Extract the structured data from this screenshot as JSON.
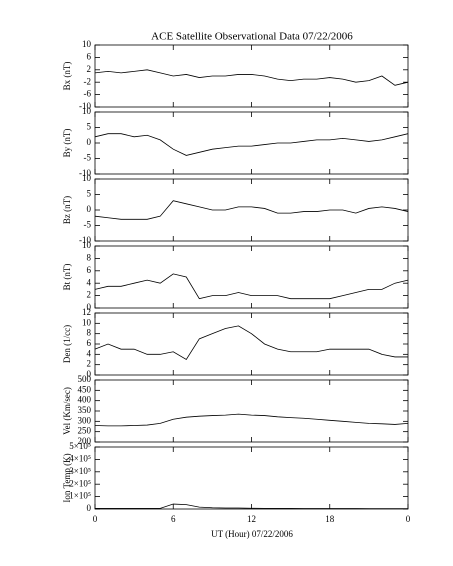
{
  "chart_data": [
    {
      "type": "line",
      "title": "ACE Satellite Observational Data   07/22/2006",
      "ylabel": "Bx (nT)",
      "color": "#000000",
      "x": [
        0,
        1,
        2,
        3,
        4,
        5,
        6,
        7,
        8,
        9,
        10,
        11,
        12,
        13,
        14,
        15,
        16,
        17,
        18,
        19,
        20,
        21,
        22,
        23,
        24
      ],
      "values": [
        1,
        1.5,
        1,
        1.5,
        2,
        1,
        0,
        0.5,
        -0.5,
        0,
        0,
        0.5,
        0.5,
        0,
        -1,
        -1.5,
        -1,
        -1,
        -0.5,
        -1,
        -2,
        -1.5,
        0,
        -3,
        -2
      ],
      "xlim": [
        0,
        24
      ],
      "ylim": [
        -10,
        10
      ],
      "yticks": [
        -10,
        -6,
        -2,
        2,
        6,
        10
      ]
    },
    {
      "type": "line",
      "ylabel": "By (nT)",
      "color": "#000000",
      "x": [
        0,
        1,
        2,
        3,
        4,
        5,
        6,
        7,
        8,
        9,
        10,
        11,
        12,
        13,
        14,
        15,
        16,
        17,
        18,
        19,
        20,
        21,
        22,
        23,
        24
      ],
      "values": [
        2,
        3,
        3,
        2,
        2.5,
        1,
        -2,
        -4,
        -3,
        -2,
        -1.5,
        -1,
        -1,
        -0.5,
        0,
        0,
        0.5,
        1,
        1,
        1.5,
        1,
        0.5,
        1,
        2,
        3
      ],
      "xlim": [
        0,
        24
      ],
      "ylim": [
        -10,
        10
      ],
      "yticks": [
        -10,
        -5,
        0,
        5,
        10
      ]
    },
    {
      "type": "line",
      "ylabel": "Bz (nT)",
      "color": "#000000",
      "x": [
        0,
        1,
        2,
        3,
        4,
        5,
        6,
        7,
        8,
        9,
        10,
        11,
        12,
        13,
        14,
        15,
        16,
        17,
        18,
        19,
        20,
        21,
        22,
        23,
        24
      ],
      "values": [
        -2,
        -2.5,
        -3,
        -3,
        -3,
        -2,
        3,
        2,
        1,
        0,
        0,
        1,
        1,
        0.5,
        -1,
        -1,
        -0.5,
        -0.5,
        0,
        0,
        -1,
        0.5,
        1,
        0.5,
        -0.5
      ],
      "xlim": [
        0,
        24
      ],
      "ylim": [
        -10,
        10
      ],
      "yticks": [
        -10,
        -5,
        0,
        5,
        10
      ]
    },
    {
      "type": "line",
      "ylabel": "Bt (nT)",
      "color": "#000000",
      "x": [
        0,
        1,
        2,
        3,
        4,
        5,
        6,
        7,
        8,
        9,
        10,
        11,
        12,
        13,
        14,
        15,
        16,
        17,
        18,
        19,
        20,
        21,
        22,
        23,
        24
      ],
      "values": [
        3,
        3.5,
        3.5,
        4,
        4.5,
        4,
        5.5,
        5,
        1.5,
        2,
        2,
        2.5,
        2,
        2,
        2,
        1.5,
        1.5,
        1.5,
        1.5,
        2,
        2.5,
        3,
        3,
        4,
        4.5
      ],
      "xlim": [
        0,
        24
      ],
      "ylim": [
        0,
        10
      ],
      "yticks": [
        0,
        2,
        4,
        6,
        8,
        10
      ]
    },
    {
      "type": "line",
      "ylabel": "Den (1/cc)",
      "color": "#000000",
      "x": [
        0,
        1,
        2,
        3,
        4,
        5,
        6,
        7,
        8,
        9,
        10,
        11,
        12,
        13,
        14,
        15,
        16,
        17,
        18,
        19,
        20,
        21,
        22,
        23,
        24
      ],
      "values": [
        5,
        6,
        5,
        5,
        4,
        4,
        4.5,
        3,
        7,
        8,
        9,
        9.5,
        8,
        6,
        5,
        4.5,
        4.5,
        4.5,
        5,
        5,
        5,
        5,
        4,
        3.5,
        3.5
      ],
      "xlim": [
        0,
        24
      ],
      "ylim": [
        0,
        12
      ],
      "yticks": [
        0,
        2,
        4,
        6,
        8,
        10,
        12
      ]
    },
    {
      "type": "line",
      "ylabel": "Vel (Km/sec)",
      "color": "#000000",
      "x": [
        0,
        1,
        2,
        3,
        4,
        5,
        6,
        7,
        8,
        9,
        10,
        11,
        12,
        13,
        14,
        15,
        16,
        17,
        18,
        19,
        20,
        21,
        22,
        23,
        24
      ],
      "values": [
        280,
        278,
        278,
        280,
        282,
        290,
        310,
        320,
        325,
        328,
        330,
        335,
        330,
        328,
        322,
        318,
        315,
        310,
        305,
        300,
        295,
        290,
        288,
        285,
        290
      ],
      "xlim": [
        0,
        24
      ],
      "ylim": [
        200,
        500
      ],
      "yticks": [
        200,
        250,
        300,
        350,
        400,
        450,
        500
      ]
    },
    {
      "type": "line",
      "ylabel": "Ion Temp (K)",
      "xlabel": "UT (Hour)   07/22/2006",
      "color": "#000000",
      "x": [
        0,
        1,
        2,
        3,
        4,
        5,
        6,
        7,
        8,
        9,
        10,
        11,
        12,
        13,
        14,
        15,
        16,
        17,
        18,
        19,
        20,
        21,
        22,
        23,
        24
      ],
      "values": [
        5000,
        5000,
        5000,
        5000,
        5000,
        5000,
        40000,
        35000,
        15000,
        10000,
        8000,
        8000,
        6000,
        5000,
        5000,
        5000,
        4000,
        4000,
        4000,
        4000,
        4000,
        3000,
        3000,
        3000,
        3000
      ],
      "xlim": [
        0,
        24
      ],
      "ylim": [
        0,
        500000
      ],
      "yticks": [
        0,
        {
          "value": 100000,
          "label": "1×10⁵"
        },
        {
          "value": 200000,
          "label": "2×10⁵"
        },
        {
          "value": 300000,
          "label": "3×10⁵"
        },
        {
          "value": 400000,
          "label": "4×10⁵"
        },
        {
          "value": 500000,
          "label": "5×10⁵"
        }
      ],
      "xticks": [
        0,
        6,
        12,
        18,
        {
          "value": 24,
          "label": "0"
        }
      ]
    }
  ]
}
